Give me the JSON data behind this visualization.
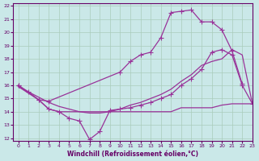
{
  "background_color": "#cae8e8",
  "line_color": "#993399",
  "xlim": [
    -0.5,
    23
  ],
  "ylim": [
    11.8,
    22.2
  ],
  "yticks": [
    12,
    13,
    14,
    15,
    16,
    17,
    18,
    19,
    20,
    21,
    22
  ],
  "xticks": [
    0,
    1,
    2,
    3,
    4,
    5,
    6,
    7,
    8,
    9,
    10,
    11,
    12,
    13,
    14,
    15,
    16,
    17,
    18,
    19,
    20,
    21,
    22,
    23
  ],
  "xlabel": "Windchill (Refroidissement éolien,°C)",
  "line1_x": [
    0,
    1,
    2,
    3,
    10,
    11,
    12,
    13,
    14,
    15,
    16,
    17,
    18,
    19,
    20,
    21,
    22
  ],
  "line1_y": [
    16.0,
    15.5,
    14.9,
    14.8,
    17.0,
    17.8,
    18.3,
    18.5,
    19.6,
    21.5,
    21.6,
    21.7,
    20.8,
    20.8,
    20.2,
    18.6,
    16.1
  ],
  "line2_x": [
    0,
    2,
    3,
    4,
    5,
    6,
    7,
    8,
    9,
    10,
    11,
    12,
    13,
    14,
    15,
    16,
    17,
    18,
    19,
    20,
    21,
    22,
    23
  ],
  "line2_y": [
    16.0,
    14.9,
    14.2,
    14.0,
    13.5,
    13.3,
    11.9,
    12.5,
    14.1,
    14.2,
    14.3,
    14.5,
    14.7,
    15.0,
    15.3,
    16.0,
    16.5,
    17.2,
    18.5,
    18.7,
    18.3,
    16.0,
    14.6
  ],
  "line3_x": [
    0,
    1,
    2,
    3,
    4,
    5,
    6,
    7,
    8,
    9,
    10,
    11,
    12,
    13,
    14,
    15,
    16,
    17,
    18,
    19,
    20,
    21,
    22,
    23
  ],
  "line3_y": [
    15.9,
    15.5,
    15.1,
    14.7,
    14.4,
    14.2,
    14.0,
    13.9,
    13.9,
    14.0,
    14.2,
    14.5,
    14.7,
    15.0,
    15.3,
    15.7,
    16.3,
    16.8,
    17.5,
    17.8,
    18.0,
    18.7,
    18.3,
    14.6
  ],
  "line4_x": [
    0,
    2,
    3,
    4,
    5,
    6,
    7,
    8,
    9,
    10,
    11,
    12,
    13,
    14,
    15,
    16,
    17,
    18,
    19,
    20,
    21,
    22,
    23
  ],
  "line4_y": [
    15.9,
    14.9,
    14.2,
    14.0,
    14.0,
    14.0,
    14.0,
    14.0,
    14.0,
    14.0,
    14.0,
    14.0,
    14.0,
    14.0,
    14.0,
    14.3,
    14.3,
    14.3,
    14.3,
    14.5,
    14.6,
    14.6,
    14.6
  ]
}
